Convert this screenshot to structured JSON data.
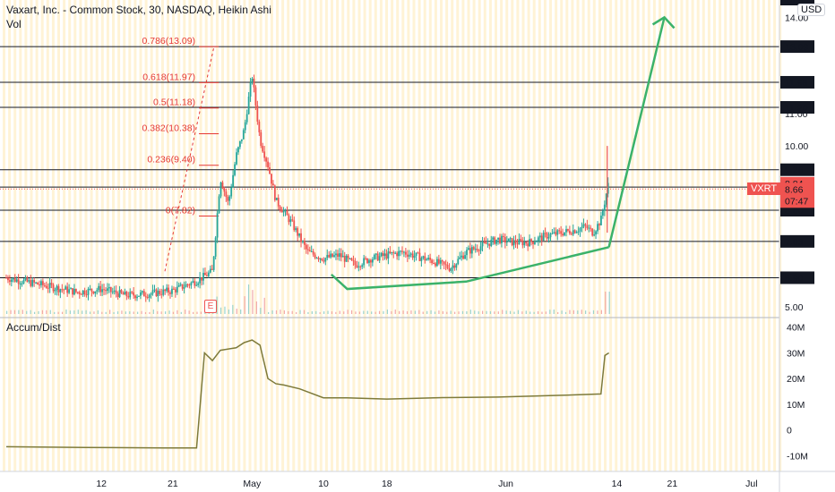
{
  "header": {
    "symbol_title": "Vaxart, Inc. - Common Stock, 30, NASDAQ, Heikin Ashi",
    "volume_label": "Vol"
  },
  "currency_badge": "USD",
  "indicator": {
    "name": "Accum/Dist"
  },
  "earnings_marker": "E",
  "ticker_badge": {
    "symbol": "VXRT",
    "price": "8.66",
    "countdown": "07:47"
  },
  "colors": {
    "up": "#26a69a",
    "down": "#ef5350",
    "fib": "#e53935",
    "arrow": "#3bb26a",
    "ad_line": "#7d7a3a",
    "hline": "#131722",
    "band": "#fff3d6",
    "price_line": "#ef5350"
  },
  "chart_data": [
    {
      "type": "candlestick",
      "title": "Vaxart, Inc. - Common Stock, 30, NASDAQ, Heikin Ashi",
      "x_ticks": [
        {
          "day": 12,
          "label": "12"
        },
        {
          "day": 21,
          "label": "21"
        },
        {
          "day": 31,
          "label": "May"
        },
        {
          "day": 40,
          "label": "10"
        },
        {
          "day": 48,
          "label": "18"
        },
        {
          "day": 63,
          "label": "Jun"
        },
        {
          "day": 77,
          "label": "14"
        },
        {
          "day": 84,
          "label": "21"
        },
        {
          "day": 94,
          "label": "Jul"
        }
      ],
      "ylim": [
        4.8,
        14.4
      ],
      "y_ticks": [
        "5.00",
        "10.00",
        "11.00",
        "14.00"
      ],
      "horizontal_levels": [
        "13.09",
        "11.98",
        "11.20",
        "9.26",
        "8.72",
        "8.00",
        "7.03",
        "5.90"
      ],
      "last_price": "8.66",
      "high_marker": "8.84",
      "top_label": "14.55",
      "fibonacci": [
        {
          "label": "0.786(13.09)",
          "value": 13.09
        },
        {
          "label": "0.618(11.97)",
          "value": 11.97
        },
        {
          "label": "0.5(11.18)",
          "value": 11.18
        },
        {
          "label": "0.382(10.38)",
          "value": 10.38
        },
        {
          "label": "0.236(9.40)",
          "value": 9.4
        },
        {
          "label": "0(7.82)",
          "value": 7.82
        }
      ],
      "trend_curve": [
        {
          "day": 41,
          "value": 6.0
        },
        {
          "day": 43,
          "value": 5.55
        },
        {
          "day": 58,
          "value": 5.78
        },
        {
          "day": 76,
          "value": 6.85
        }
      ],
      "projection_arrow": [
        {
          "day": 76,
          "value": 6.85
        },
        {
          "day": 83,
          "value": 14.0
        }
      ],
      "series": [
        {
          "days": [
            0,
            3,
            6,
            9,
            12,
            15,
            18,
            21,
            24,
            26,
            27,
            28,
            29,
            30,
            31,
            32,
            33,
            34,
            36,
            38,
            40,
            42,
            44,
            46,
            48,
            50,
            52,
            54,
            56,
            58,
            60,
            62,
            64,
            66,
            68,
            70,
            72,
            73,
            74,
            75,
            76
          ],
          "values": [
            5.9,
            5.75,
            5.6,
            5.45,
            5.55,
            5.35,
            5.4,
            5.5,
            5.8,
            6.1,
            9.0,
            8.2,
            9.7,
            10.5,
            12.2,
            10.2,
            9.4,
            8.3,
            7.6,
            6.7,
            6.5,
            6.6,
            6.3,
            6.5,
            6.6,
            6.7,
            6.55,
            6.4,
            6.2,
            6.7,
            6.9,
            7.1,
            7.0,
            7.0,
            7.2,
            7.3,
            7.4,
            7.5,
            7.3,
            7.7,
            8.9
          ]
        }
      ]
    },
    {
      "type": "line",
      "name": "Accum/Dist",
      "ylim": [
        -13,
        42
      ],
      "y_ticks": [
        "40M",
        "30M",
        "20M",
        "10M",
        "0",
        "-10M"
      ],
      "series": [
        {
          "days": [
            0,
            10,
            20,
            24,
            25,
            26,
            27,
            29,
            30,
            31,
            32,
            33,
            34,
            35,
            37,
            40,
            43,
            48,
            55,
            62,
            70,
            75,
            75.5,
            76
          ],
          "values": [
            -6.5,
            -6.8,
            -7.0,
            -7.0,
            30,
            27,
            31,
            32,
            34,
            35,
            33,
            20,
            18,
            17.5,
            16,
            12.5,
            12.5,
            12.0,
            12.6,
            12.8,
            13.5,
            14.0,
            29,
            30
          ]
        }
      ]
    }
  ]
}
